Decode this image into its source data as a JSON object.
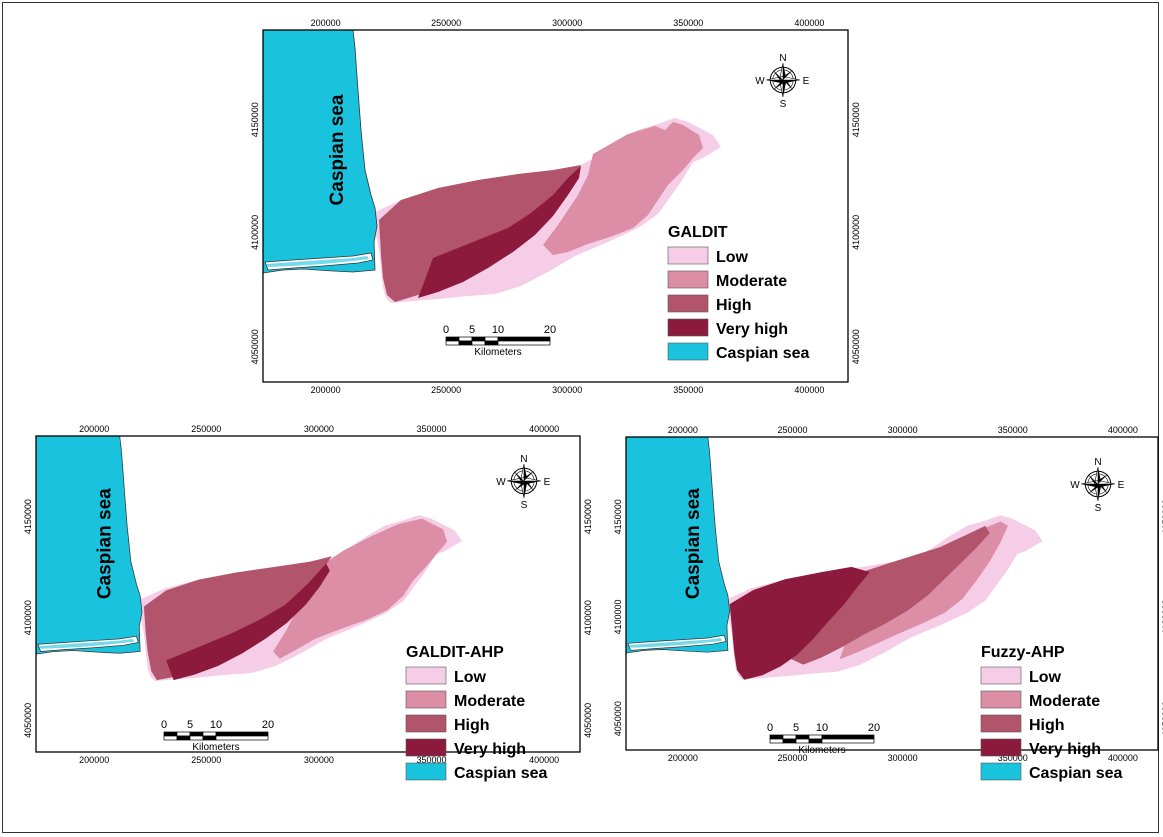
{
  "colors": {
    "low": "#f6cde6",
    "moderate": "#dc8ea6",
    "high": "#b2546c",
    "very_high": "#8b1a3c",
    "sea": "#19c3dd",
    "frame": "#000000"
  },
  "panels": [
    {
      "id": "galdit",
      "legend_title": "GALDIT",
      "legend": [
        "Low",
        "Moderate",
        "High",
        "Very high",
        "Caspian sea"
      ],
      "sea_label": "Caspian sea",
      "x_ticks": [
        "200000",
        "250000",
        "300000",
        "350000",
        "400000"
      ],
      "y_ticks": [
        "4150000",
        "4100000",
        "4050000"
      ],
      "scale_ticks": [
        "0",
        "5",
        "10",
        "20"
      ],
      "scale_unit": "Kilometers",
      "compass": [
        "N",
        "S",
        "E",
        "W"
      ]
    },
    {
      "id": "galdit-ahp",
      "legend_title": "GALDIT-AHP",
      "legend": [
        "Low",
        "Moderate",
        "High",
        "Very high",
        "Caspian sea"
      ],
      "sea_label": "Caspian sea",
      "x_ticks": [
        "200000",
        "250000",
        "300000",
        "350000",
        "400000"
      ],
      "y_ticks": [
        "4150000",
        "4100000",
        "4050000"
      ],
      "scale_ticks": [
        "0",
        "5",
        "10",
        "20"
      ],
      "scale_unit": "Kilometers",
      "compass": [
        "N",
        "S",
        "E",
        "W"
      ]
    },
    {
      "id": "fuzzy-ahp",
      "legend_title": "Fuzzy-AHP",
      "legend": [
        "Low",
        "Moderate",
        "High",
        "Very high",
        "Caspian sea"
      ],
      "sea_label": "Caspian sea",
      "x_ticks": [
        "200000",
        "250000",
        "300000",
        "350000",
        "400000"
      ],
      "y_ticks": [
        "4150000",
        "4100000",
        "4050000"
      ],
      "scale_ticks": [
        "0",
        "5",
        "10",
        "20"
      ],
      "scale_unit": "Kilometers",
      "compass": [
        "N",
        "S",
        "E",
        "W"
      ]
    }
  ]
}
